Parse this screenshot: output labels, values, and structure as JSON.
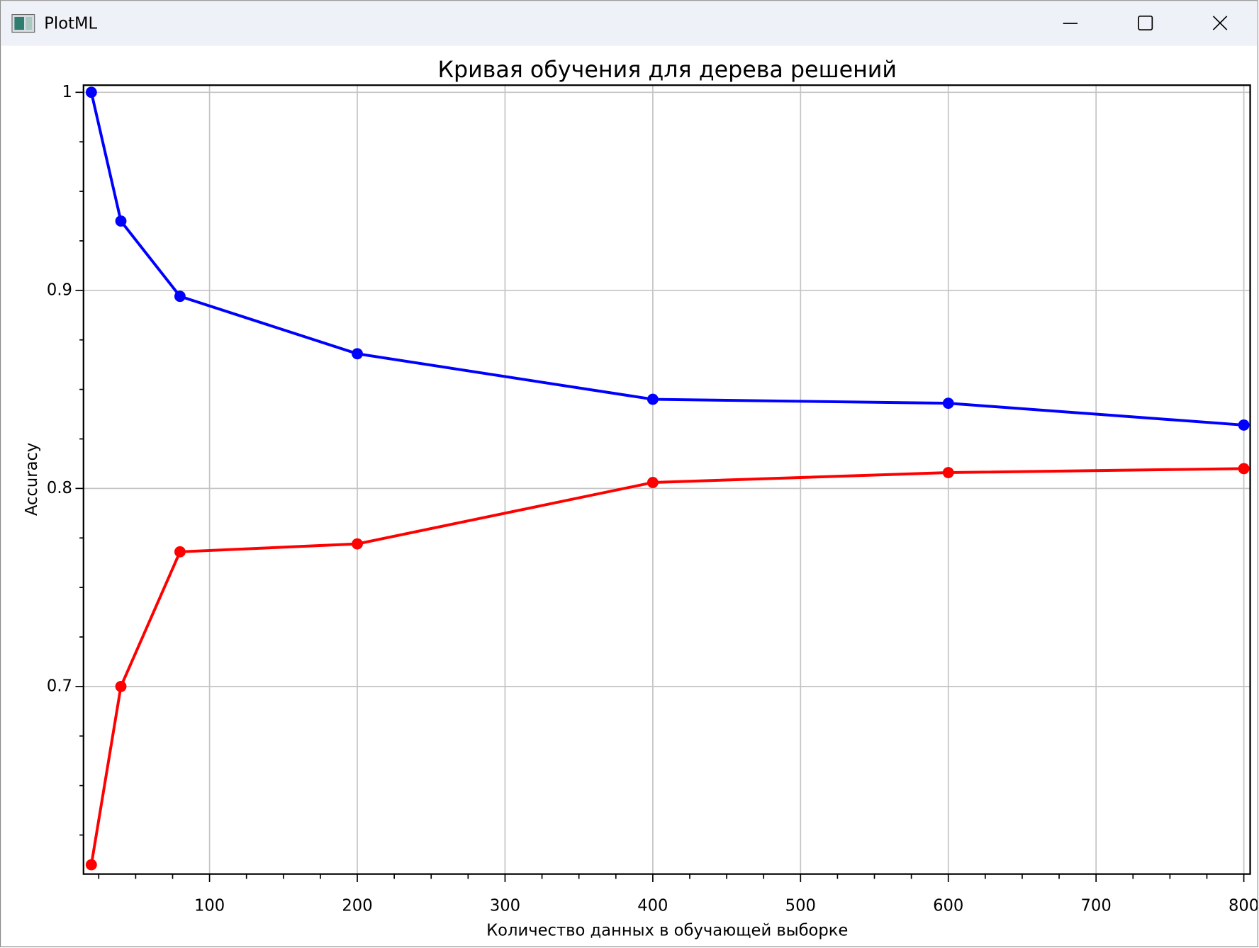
{
  "window": {
    "title": "PlotML"
  },
  "chart_data": {
    "type": "line",
    "title": "Кривая обучения для дерева решений",
    "x_label": "Количество данных в обучающей выборке",
    "y_label": "Accuracy",
    "x": [
      20,
      40,
      80,
      200,
      400,
      600,
      800
    ],
    "series": [
      {
        "color": "#0000ff",
        "values": [
          1.0,
          0.935,
          0.897,
          0.868,
          0.845,
          0.843,
          0.832
        ]
      },
      {
        "color": "#ff0000",
        "values": [
          0.61,
          0.7,
          0.768,
          0.772,
          0.803,
          0.808,
          0.81
        ]
      }
    ],
    "xlim": [
      14.7,
      804.3
    ],
    "ylim": [
      0.6053,
      1.0036
    ],
    "xticks": [
      100,
      200,
      300,
      400,
      500,
      600,
      700,
      800
    ],
    "yticks": [
      0.7,
      0.8,
      0.9,
      1
    ],
    "xminorticks": [
      25,
      50,
      75,
      125,
      150,
      175,
      225,
      250,
      275,
      325,
      350,
      375,
      425,
      450,
      475,
      525,
      550,
      575,
      625,
      650,
      675,
      725,
      750,
      775
    ],
    "yminorticks": [
      0.625,
      0.65,
      0.675,
      0.725,
      0.75,
      0.775,
      0.825,
      0.85,
      0.875,
      0.925,
      0.95,
      0.975
    ],
    "grid": true
  }
}
